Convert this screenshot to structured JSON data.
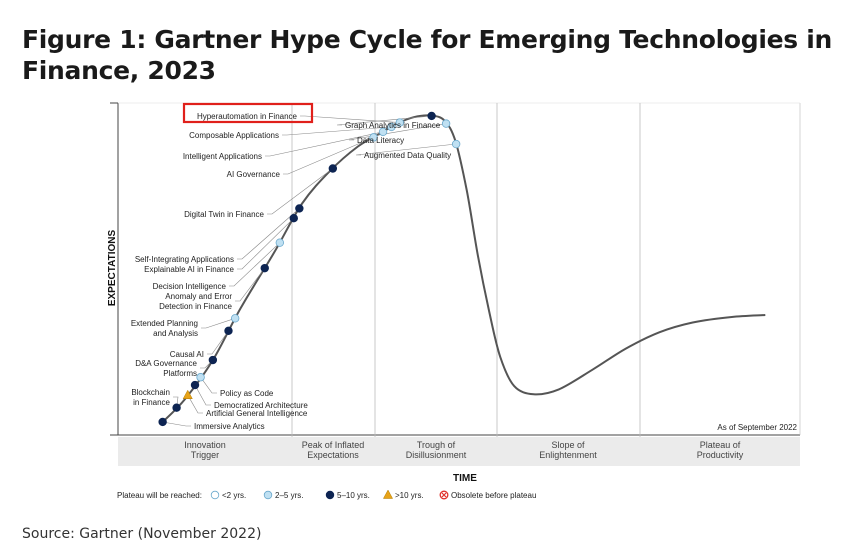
{
  "title": "Figure 1: Gartner Hype Cycle for Emerging Technologies in Finance, 2023",
  "source": "Source: Gartner (November 2022)",
  "chart_data": {
    "type": "line",
    "xlabel": "TIME",
    "ylabel": "EXPECTATIONS",
    "as_of": "As of September 2022",
    "phases": [
      "Innovation Trigger",
      "Peak of Inflated Expectations",
      "Trough of Disillusionment",
      "Slope of Enlightenment",
      "Plateau of Productivity"
    ],
    "legend_title": "Plateau will be reached:",
    "legend": [
      {
        "label": "<2 yrs.",
        "kind": "lt2",
        "color": "#ffffff"
      },
      {
        "label": "2–5 yrs.",
        "kind": "2to5",
        "color": "#bfe0f2"
      },
      {
        "label": "5–10 yrs.",
        "kind": "5to10",
        "color": "#0d2452"
      },
      {
        "label": ">10 yrs.",
        "kind": "gt10",
        "color": "#e8a317"
      },
      {
        "label": "Obsolete before plateau",
        "kind": "obs",
        "color": "#e0312b"
      }
    ],
    "highlighted": "Hyperautomation in Finance",
    "highlight_color": "#e0201b",
    "technologies": [
      {
        "name": "Hyperautomation in Finance",
        "t": 0.505,
        "cat": "2to5"
      },
      {
        "name": "Composable Applications",
        "t": 0.49,
        "cat": "2to5"
      },
      {
        "name": "Intelligent Applications",
        "t": 0.475,
        "cat": "2to5"
      },
      {
        "name": "AI Governance",
        "t": 0.458,
        "cat": "2to5"
      },
      {
        "name": "Graph Analytics in Finance",
        "t": 0.562,
        "cat": "5to10"
      },
      {
        "name": "Data Literacy",
        "t": 0.588,
        "cat": "2to5"
      },
      {
        "name": "Augmented Data Quality",
        "t": 0.606,
        "cat": "2to5"
      },
      {
        "name": "Digital Twin in Finance",
        "t": 0.385,
        "cat": "5to10"
      },
      {
        "name": "Self-Integrating Applications",
        "t": 0.325,
        "cat": "5to10"
      },
      {
        "name": "Explainable AI in Finance",
        "t": 0.315,
        "cat": "5to10"
      },
      {
        "name": "Decision Intelligence",
        "t": 0.29,
        "cat": "2to5"
      },
      {
        "name": "Anomaly and Error Detection in Finance",
        "t": 0.263,
        "cat": "5to10"
      },
      {
        "name": "Extended Planning and Analysis",
        "t": 0.21,
        "cat": "2to5"
      },
      {
        "name": "Causal AI",
        "t": 0.198,
        "cat": "5to10"
      },
      {
        "name": "D&A Governance Platforms",
        "t": 0.17,
        "cat": "5to10"
      },
      {
        "name": "Policy as Code",
        "t": 0.148,
        "cat": "2to5"
      },
      {
        "name": "Democratized Architecture",
        "t": 0.138,
        "cat": "5to10"
      },
      {
        "name": "Artificial General Intelligence",
        "t": 0.125,
        "cat": "gt10"
      },
      {
        "name": "Blockchain in Finance",
        "t": 0.105,
        "cat": "5to10"
      },
      {
        "name": "Immersive Analytics",
        "t": 0.08,
        "cat": "5to10"
      }
    ]
  }
}
